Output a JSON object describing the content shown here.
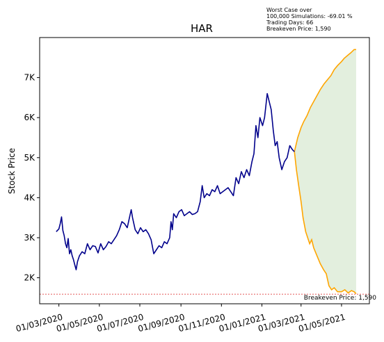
{
  "chart_data": {
    "type": "line",
    "title": "HAR",
    "xlabel": "",
    "ylabel": "Stock Price",
    "xlim": [
      "2020-02-01",
      "2021-06-12"
    ],
    "ylim": [
      1350,
      8000
    ],
    "x_ticks": [
      "01/03/2020",
      "01/05/2020",
      "01/07/2020",
      "01/09/2020",
      "01/11/2020",
      "01/01/2021",
      "01/03/2021",
      "01/05/2021"
    ],
    "x_tick_dates": [
      "2020-03-01",
      "2020-05-01",
      "2020-07-01",
      "2020-09-01",
      "2020-11-01",
      "2021-01-01",
      "2021-03-01",
      "2021-05-01"
    ],
    "y_ticks": [
      "2K",
      "3K",
      "4K",
      "5K",
      "6K",
      "7K"
    ],
    "y_tick_values": [
      2000,
      3000,
      4000,
      5000,
      6000,
      7000
    ],
    "grid": false,
    "colors": {
      "history": "#00008b",
      "simulation": "#ffa500",
      "band_fill": "#d9ead3",
      "breakeven": "#e04040"
    },
    "series": [
      {
        "role": "history",
        "points": [
          [
            "2020-02-26",
            3150
          ],
          [
            "2020-03-01",
            3220
          ],
          [
            "2020-03-03",
            3350
          ],
          [
            "2020-03-05",
            3520
          ],
          [
            "2020-03-07",
            3180
          ],
          [
            "2020-03-09",
            3050
          ],
          [
            "2020-03-11",
            2850
          ],
          [
            "2020-03-13",
            2750
          ],
          [
            "2020-03-15",
            2980
          ],
          [
            "2020-03-17",
            2600
          ],
          [
            "2020-03-19",
            2700
          ],
          [
            "2020-03-21",
            2550
          ],
          [
            "2020-03-23",
            2450
          ],
          [
            "2020-03-25",
            2320
          ],
          [
            "2020-03-27",
            2200
          ],
          [
            "2020-03-29",
            2400
          ],
          [
            "2020-04-01",
            2550
          ],
          [
            "2020-04-05",
            2650
          ],
          [
            "2020-04-09",
            2600
          ],
          [
            "2020-04-13",
            2850
          ],
          [
            "2020-04-17",
            2700
          ],
          [
            "2020-04-21",
            2800
          ],
          [
            "2020-04-25",
            2780
          ],
          [
            "2020-04-29",
            2620
          ],
          [
            "2020-05-03",
            2850
          ],
          [
            "2020-05-07",
            2700
          ],
          [
            "2020-05-11",
            2780
          ],
          [
            "2020-05-15",
            2900
          ],
          [
            "2020-05-19",
            2850
          ],
          [
            "2020-05-23",
            2950
          ],
          [
            "2020-05-27",
            3050
          ],
          [
            "2020-05-31",
            3200
          ],
          [
            "2020-06-04",
            3400
          ],
          [
            "2020-06-08",
            3350
          ],
          [
            "2020-06-12",
            3250
          ],
          [
            "2020-06-16",
            3550
          ],
          [
            "2020-06-18",
            3700
          ],
          [
            "2020-06-20",
            3500
          ],
          [
            "2020-06-24",
            3200
          ],
          [
            "2020-06-28",
            3100
          ],
          [
            "2020-07-02",
            3250
          ],
          [
            "2020-07-06",
            3150
          ],
          [
            "2020-07-10",
            3200
          ],
          [
            "2020-07-14",
            3100
          ],
          [
            "2020-07-18",
            2950
          ],
          [
            "2020-07-22",
            2600
          ],
          [
            "2020-07-26",
            2700
          ],
          [
            "2020-07-30",
            2800
          ],
          [
            "2020-08-03",
            2750
          ],
          [
            "2020-08-07",
            2900
          ],
          [
            "2020-08-11",
            2850
          ],
          [
            "2020-08-15",
            3000
          ],
          [
            "2020-08-17",
            3400
          ],
          [
            "2020-08-19",
            3200
          ],
          [
            "2020-08-21",
            3600
          ],
          [
            "2020-08-25",
            3500
          ],
          [
            "2020-08-29",
            3650
          ],
          [
            "2020-09-02",
            3700
          ],
          [
            "2020-09-06",
            3550
          ],
          [
            "2020-09-10",
            3600
          ],
          [
            "2020-09-14",
            3650
          ],
          [
            "2020-09-18",
            3580
          ],
          [
            "2020-09-22",
            3600
          ],
          [
            "2020-09-26",
            3650
          ],
          [
            "2020-09-30",
            3900
          ],
          [
            "2020-10-03",
            4300
          ],
          [
            "2020-10-06",
            4000
          ],
          [
            "2020-10-10",
            4100
          ],
          [
            "2020-10-14",
            4050
          ],
          [
            "2020-10-18",
            4200
          ],
          [
            "2020-10-22",
            4150
          ],
          [
            "2020-10-26",
            4300
          ],
          [
            "2020-10-30",
            4100
          ],
          [
            "2020-11-03",
            4150
          ],
          [
            "2020-11-07",
            4200
          ],
          [
            "2020-11-11",
            4250
          ],
          [
            "2020-11-15",
            4150
          ],
          [
            "2020-11-19",
            4050
          ],
          [
            "2020-11-23",
            4500
          ],
          [
            "2020-11-27",
            4350
          ],
          [
            "2020-12-01",
            4650
          ],
          [
            "2020-12-05",
            4500
          ],
          [
            "2020-12-09",
            4700
          ],
          [
            "2020-12-13",
            4550
          ],
          [
            "2020-12-17",
            4900
          ],
          [
            "2020-12-20",
            5100
          ],
          [
            "2020-12-23",
            5800
          ],
          [
            "2020-12-26",
            5500
          ],
          [
            "2020-12-29",
            6000
          ],
          [
            "2021-01-02",
            5800
          ],
          [
            "2021-01-05",
            6000
          ],
          [
            "2021-01-09",
            6600
          ],
          [
            "2021-01-12",
            6400
          ],
          [
            "2021-01-15",
            6200
          ],
          [
            "2021-01-18",
            5700
          ],
          [
            "2021-01-21",
            5300
          ],
          [
            "2021-01-24",
            5400
          ],
          [
            "2021-01-27",
            5000
          ],
          [
            "2021-01-31",
            4700
          ],
          [
            "2021-02-04",
            4900
          ],
          [
            "2021-02-08",
            5000
          ],
          [
            "2021-02-12",
            5300
          ],
          [
            "2021-02-16",
            5200
          ],
          [
            "2021-02-19",
            5150
          ]
        ]
      },
      {
        "role": "simulation-upper",
        "points": [
          [
            "2021-02-19",
            5150
          ],
          [
            "2021-02-24",
            5500
          ],
          [
            "2021-03-01",
            5750
          ],
          [
            "2021-03-05",
            5900
          ],
          [
            "2021-03-10",
            6050
          ],
          [
            "2021-03-15",
            6250
          ],
          [
            "2021-03-20",
            6400
          ],
          [
            "2021-03-25",
            6550
          ],
          [
            "2021-03-30",
            6700
          ],
          [
            "2021-04-05",
            6850
          ],
          [
            "2021-04-10",
            6950
          ],
          [
            "2021-04-15",
            7050
          ],
          [
            "2021-04-20",
            7200
          ],
          [
            "2021-04-25",
            7300
          ],
          [
            "2021-05-01",
            7400
          ],
          [
            "2021-05-05",
            7480
          ],
          [
            "2021-05-10",
            7550
          ],
          [
            "2021-05-15",
            7620
          ],
          [
            "2021-05-20",
            7700
          ],
          [
            "2021-05-23",
            7700
          ]
        ]
      },
      {
        "role": "simulation-lower",
        "points": [
          [
            "2021-02-19",
            5150
          ],
          [
            "2021-02-22",
            4700
          ],
          [
            "2021-02-25",
            4350
          ],
          [
            "2021-03-01",
            3900
          ],
          [
            "2021-03-04",
            3500
          ],
          [
            "2021-03-08",
            3150
          ],
          [
            "2021-03-12",
            2950
          ],
          [
            "2021-03-14",
            2850
          ],
          [
            "2021-03-17",
            2950
          ],
          [
            "2021-03-20",
            2750
          ],
          [
            "2021-03-25",
            2550
          ],
          [
            "2021-03-30",
            2350
          ],
          [
            "2021-04-04",
            2200
          ],
          [
            "2021-04-08",
            2100
          ],
          [
            "2021-04-12",
            1800
          ],
          [
            "2021-04-16",
            1700
          ],
          [
            "2021-04-20",
            1750
          ],
          [
            "2021-04-25",
            1650
          ],
          [
            "2021-05-01",
            1650
          ],
          [
            "2021-05-06",
            1700
          ],
          [
            "2021-05-11",
            1620
          ],
          [
            "2021-05-16",
            1680
          ],
          [
            "2021-05-20",
            1650
          ],
          [
            "2021-05-23",
            1600
          ]
        ]
      }
    ],
    "breakeven": {
      "value": 1590,
      "label": "Breakeven Price: 1,590"
    },
    "annotations": [
      "Worst Case over",
      "100,000 Simulations: -69.01 %",
      "Trading Days: 66",
      "Breakeven Price: 1,590"
    ]
  }
}
